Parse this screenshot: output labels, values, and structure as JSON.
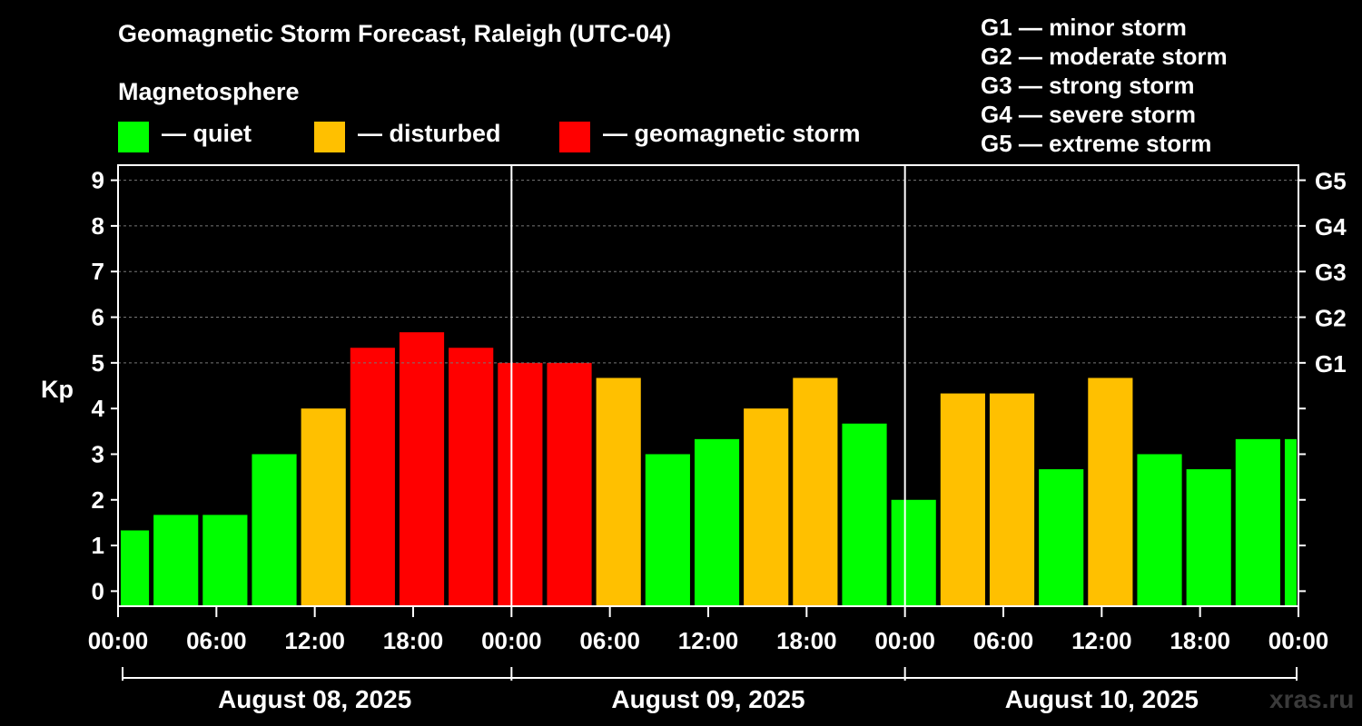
{
  "title": "Geomagnetic Storm Forecast, Raleigh (UTC-04)",
  "subtitle": "Magnetosphere",
  "legend": [
    {
      "label": "— quiet",
      "color": "#00ff00"
    },
    {
      "label": "— disturbed",
      "color": "#ffc000"
    },
    {
      "label": "— geomagnetic storm",
      "color": "#ff0000"
    }
  ],
  "storm_levels": [
    "G1 — minor storm",
    "G2 — moderate storm",
    "G3 — strong storm",
    "G4 — severe storm",
    "G5 — extreme storm"
  ],
  "watermark": "xras.ru",
  "colors": {
    "quiet": "#00ff00",
    "disturbed": "#ffc000",
    "storm": "#ff0000"
  },
  "chart_data": {
    "type": "bar",
    "ylabel": "Kp",
    "ylim": [
      -0.33,
      9.33
    ],
    "yticks": [
      0,
      1,
      2,
      3,
      4,
      5,
      6,
      7,
      8,
      9
    ],
    "right_ticks": [
      {
        "value": 5,
        "label": "G1"
      },
      {
        "value": 6,
        "label": "G2"
      },
      {
        "value": 7,
        "label": "G3"
      },
      {
        "value": 8,
        "label": "G4"
      },
      {
        "value": 9,
        "label": "G5"
      }
    ],
    "xlim_hours": [
      0,
      72
    ],
    "xtick_labels": [
      "00:00",
      "06:00",
      "12:00",
      "18:00",
      "00:00",
      "06:00",
      "12:00",
      "18:00",
      "00:00",
      "06:00",
      "12:00",
      "18:00",
      "00:00"
    ],
    "days": [
      "August 08, 2025",
      "August 09, 2025",
      "August 10, 2025"
    ],
    "bars": [
      {
        "start": 0,
        "end": 2,
        "kp": 1.33,
        "level": "quiet"
      },
      {
        "start": 2,
        "end": 5,
        "kp": 1.67,
        "level": "quiet"
      },
      {
        "start": 5,
        "end": 8,
        "kp": 1.67,
        "level": "quiet"
      },
      {
        "start": 8,
        "end": 11,
        "kp": 3.0,
        "level": "quiet"
      },
      {
        "start": 11,
        "end": 14,
        "kp": 4.0,
        "level": "disturbed"
      },
      {
        "start": 14,
        "end": 17,
        "kp": 5.33,
        "level": "storm"
      },
      {
        "start": 17,
        "end": 20,
        "kp": 5.67,
        "level": "storm"
      },
      {
        "start": 20,
        "end": 23,
        "kp": 5.33,
        "level": "storm"
      },
      {
        "start": 23,
        "end": 26,
        "kp": 5.0,
        "level": "storm"
      },
      {
        "start": 26,
        "end": 29,
        "kp": 5.0,
        "level": "storm"
      },
      {
        "start": 29,
        "end": 32,
        "kp": 4.67,
        "level": "disturbed"
      },
      {
        "start": 32,
        "end": 35,
        "kp": 3.0,
        "level": "quiet"
      },
      {
        "start": 35,
        "end": 38,
        "kp": 3.33,
        "level": "quiet"
      },
      {
        "start": 38,
        "end": 41,
        "kp": 4.0,
        "level": "disturbed"
      },
      {
        "start": 41,
        "end": 44,
        "kp": 4.67,
        "level": "disturbed"
      },
      {
        "start": 44,
        "end": 47,
        "kp": 3.67,
        "level": "quiet"
      },
      {
        "start": 47,
        "end": 50,
        "kp": 2.0,
        "level": "quiet"
      },
      {
        "start": 50,
        "end": 53,
        "kp": 4.33,
        "level": "disturbed"
      },
      {
        "start": 53,
        "end": 56,
        "kp": 4.33,
        "level": "disturbed"
      },
      {
        "start": 56,
        "end": 59,
        "kp": 2.67,
        "level": "quiet"
      },
      {
        "start": 59,
        "end": 62,
        "kp": 4.67,
        "level": "disturbed"
      },
      {
        "start": 62,
        "end": 65,
        "kp": 3.0,
        "level": "quiet"
      },
      {
        "start": 65,
        "end": 68,
        "kp": 2.67,
        "level": "quiet"
      },
      {
        "start": 68,
        "end": 71,
        "kp": 3.33,
        "level": "quiet"
      },
      {
        "start": 71,
        "end": 72,
        "kp": 3.33,
        "level": "quiet"
      }
    ]
  }
}
